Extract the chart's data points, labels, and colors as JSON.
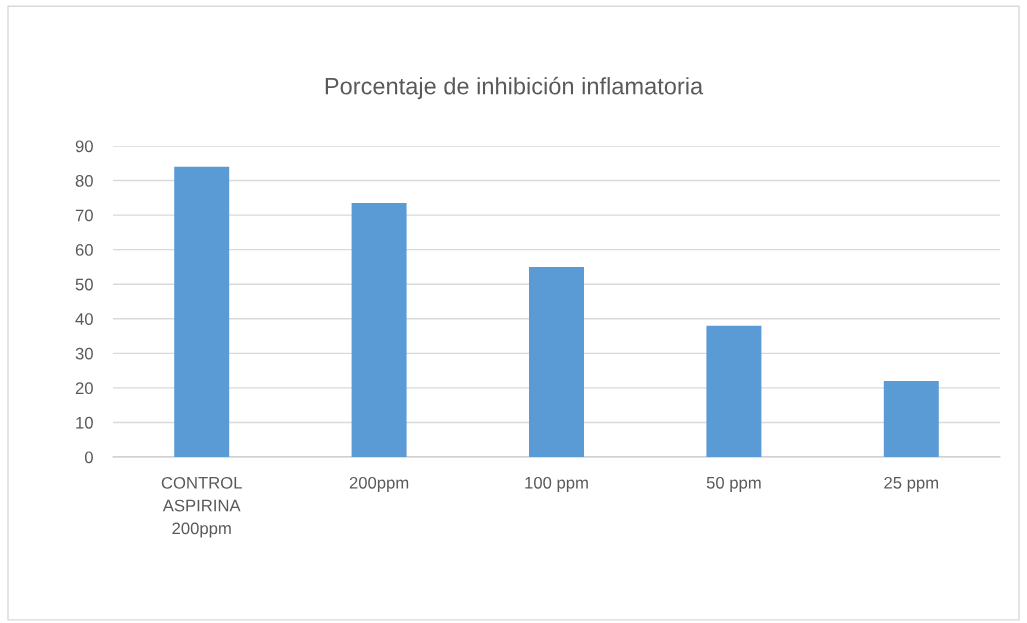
{
  "chart_data": {
    "type": "bar",
    "title": "Porcentaje de inhibición inflamatoria",
    "categories": [
      "CONTROL\nASPIRINA\n200ppm",
      "200ppm",
      "100 ppm",
      "50 ppm",
      "25 ppm"
    ],
    "values": [
      84,
      73.5,
      55,
      38,
      22
    ],
    "color": "#5b9bd5",
    "ylim": [
      0,
      90
    ],
    "yticks": [
      0,
      10,
      20,
      30,
      40,
      50,
      60,
      70,
      80,
      90
    ],
    "grid": "y",
    "legend": false
  }
}
